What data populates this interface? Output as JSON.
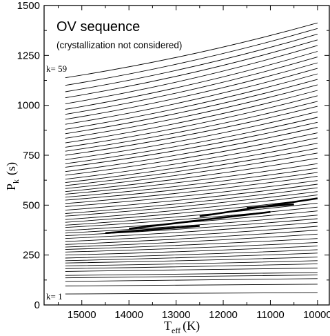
{
  "chart_data": {
    "type": "line",
    "title": "OV sequence",
    "subtitle": "(crystallization not considered)",
    "xlabel": {
      "main": "T",
      "sub": "eff",
      "unit": "(K)"
    },
    "ylabel": {
      "main": "P",
      "sub": "k",
      "unit": "(s)"
    },
    "xlim": [
      15800,
      9750
    ],
    "ylim": [
      0,
      1500
    ],
    "x_reversed": true,
    "x_ticks": [
      15000,
      14000,
      13000,
      12000,
      11000,
      10000
    ],
    "x_tick_labels": [
      "15000",
      "14000",
      "13000",
      "12000",
      "11000",
      "10000"
    ],
    "y_ticks": [
      0,
      250,
      500,
      750,
      1000,
      1250,
      1500
    ],
    "y_tick_labels": [
      "0",
      "250",
      "500",
      "750",
      "1000",
      "1250",
      "1500"
    ],
    "grid": false,
    "legend": "none",
    "annotations": {
      "k_top": "k= 59",
      "k_bottom": "k= 1"
    },
    "mode_tracks": {
      "k_first": 1,
      "k_last": 59,
      "x_start": 15350,
      "x_end": 10000,
      "period_at_start": [
        55,
        95,
        118,
        136,
        148,
        168,
        182,
        196,
        210,
        222,
        235,
        250,
        265,
        278,
        290,
        303,
        318,
        333,
        347,
        360,
        373,
        388,
        400,
        414,
        428,
        445,
        458,
        475,
        493,
        508,
        525,
        540,
        555,
        568,
        583,
        598,
        613,
        630,
        650,
        668,
        690,
        708,
        728,
        750,
        770,
        790,
        812,
        835,
        858,
        880,
        905,
        930,
        955,
        980,
        1008,
        1038,
        1068,
        1100,
        1138
      ],
      "period_at_end": [
        62,
        104,
        132,
        150,
        162,
        185,
        206,
        222,
        240,
        260,
        277,
        295,
        313,
        333,
        355,
        375,
        394,
        414,
        432,
        450,
        471,
        490,
        510,
        532,
        551,
        568,
        587,
        605,
        623,
        645,
        664,
        685,
        708,
        735,
        761,
        785,
        810,
        837,
        862,
        890,
        915,
        940,
        968,
        995,
        1020,
        1048,
        1075,
        1103,
        1130,
        1158,
        1185,
        1213,
        1242,
        1270,
        1300,
        1328,
        1357,
        1385,
        1413
      ],
      "line_color": "#000000"
    },
    "highlighted_segments": [
      {
        "x": [
          14500,
          12500
        ],
        "y": [
          360,
          396
        ]
      },
      {
        "x": [
          14000,
          11000
        ],
        "y": [
          382,
          466
        ]
      },
      {
        "x": [
          12500,
          10000
        ],
        "y": [
          444,
          534
        ]
      },
      {
        "x": [
          11500,
          10500
        ],
        "y": [
          486,
          504
        ]
      }
    ]
  }
}
